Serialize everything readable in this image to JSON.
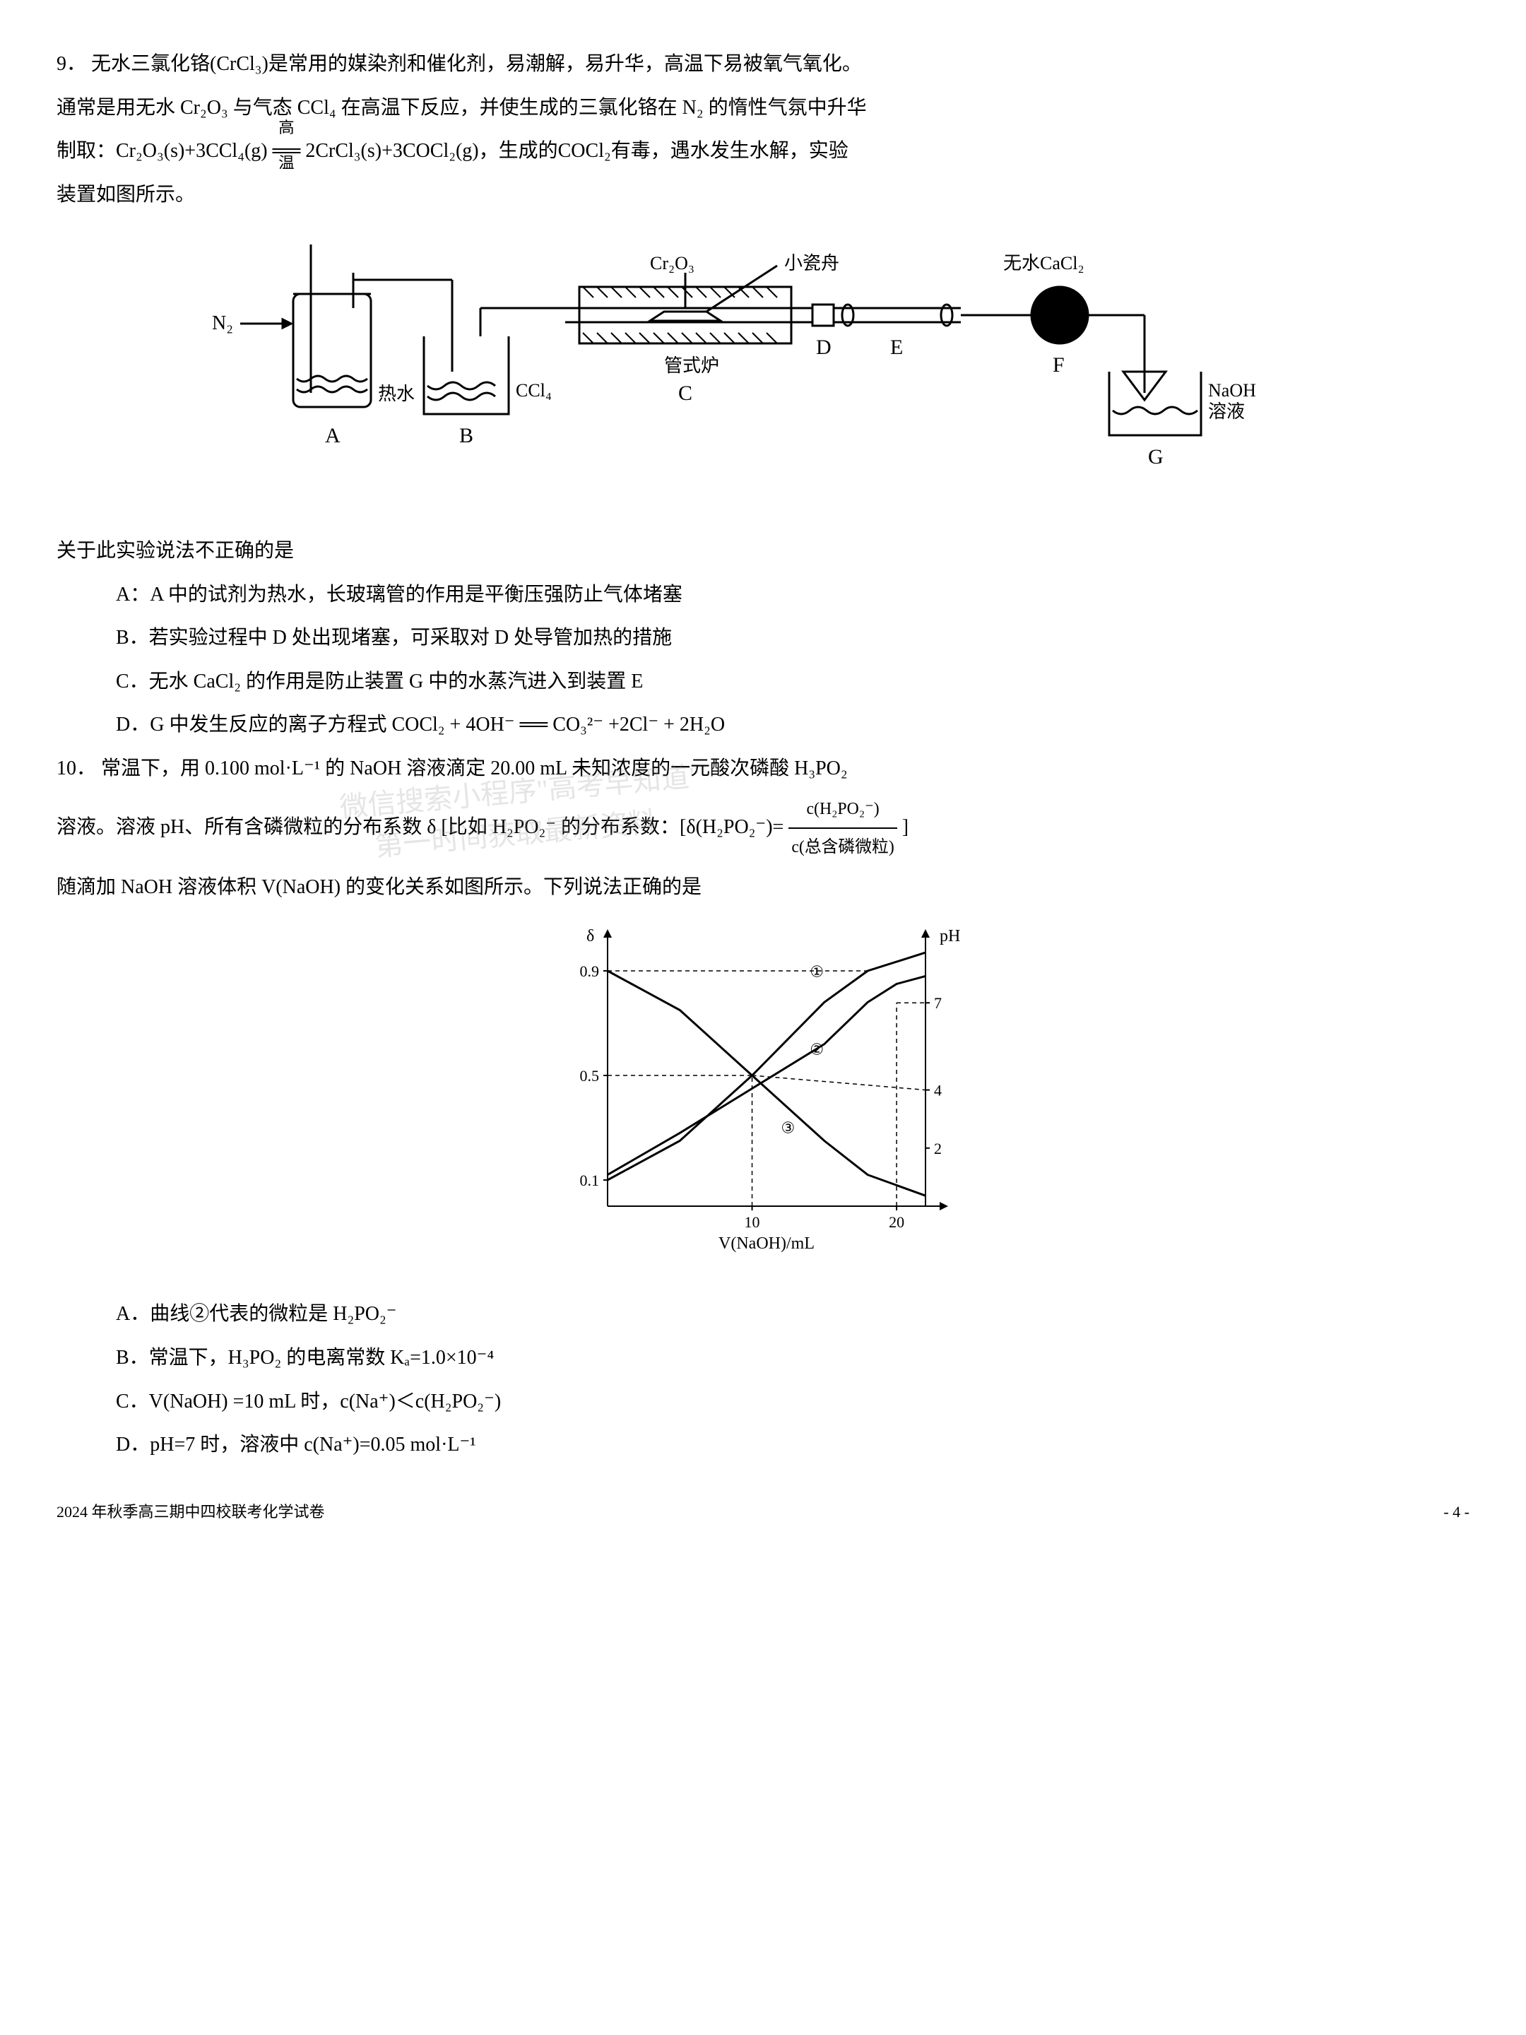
{
  "q9": {
    "number": "9．",
    "text1": "无水三氯化铬(CrCl₃)是常用的媒染剂和催化剂，易潮解，易升华，高温下易被氧气氧化。",
    "text2": "通常是用无水 Cr₂O₃ 与气态 CCl₄ 在高温下反应，并使生成的三氯化铬在 N₂ 的惰性气氛中升华",
    "text3_prefix": "制取：Cr₂O₃(s)+3CCl₄(g)",
    "text3_over": "高温",
    "text3_suffix": " 2CrCl₃(s)+3COCl₂(g)，生成的COCl₂有毒，遇水发生水解，实验",
    "text4": "装置如图所示。",
    "stem": "关于此实验说法不正确的是",
    "options": {
      "A": "A：A 中的试剂为热水，长玻璃管的作用是平衡压强防止气体堵塞",
      "B": "B．若实验过程中 D 处出现堵塞，可采取对 D 处导管加热的措施",
      "C": "C．无水 CaCl₂ 的作用是防止装置 G 中的水蒸汽进入到装置 E",
      "D": "D．G 中发生反应的离子方程式 COCl₂ + 4OH⁻ ══ CO₃²⁻ +2Cl⁻ + 2H₂O"
    },
    "diagram": {
      "labels": {
        "N2": "N₂",
        "hotwater": "热水",
        "CCl4": "CCl₄",
        "Cr2O3": "Cr₂O₃",
        "boat": "小瓷舟",
        "furnace": "管式炉",
        "CaCl2": "无水CaCl₂",
        "NaOH": "NaOH",
        "solution": "溶液",
        "A": "A",
        "B": "B",
        "C": "C",
        "D": "D",
        "E": "E",
        "F": "F",
        "G": "G"
      },
      "colors": {
        "stroke": "#000000",
        "hatch": "#000000",
        "fill_white": "#ffffff"
      }
    }
  },
  "q10": {
    "number": "10．",
    "text1": "常温下，用 0.100 mol·L⁻¹ 的 NaOH 溶液滴定 20.00 mL 未知浓度的一元酸次磷酸 H₃PO₂",
    "text2_prefix": "溶液。溶液 pH、所有含磷微粒的分布系数 δ [比如 H₂PO₂⁻ 的分布系数：[δ(H₂PO₂⁻)=",
    "frac_num": "c(H₂PO₂⁻)",
    "frac_den": "c(总含磷微粒)",
    "text2_suffix": "]",
    "text3": "随滴加 NaOH 溶液体积 V(NaOH) 的变化关系如图所示。下列说法正确的是",
    "options": {
      "A": "A．曲线②代表的微粒是 H₂PO₂⁻",
      "B": "B．常温下，H₃PO₂ 的电离常数 Kₐ=1.0×10⁻⁴",
      "C": "C．V(NaOH) =10 mL 时，c(Na⁺)＜c(H₂PO₂⁻)",
      "D": "D．pH=7 时，溶液中 c(Na⁺)=0.05 mol·L⁻¹"
    },
    "chart": {
      "type": "line",
      "xlabel": "V(NaOH)/mL",
      "ylabel_left": "δ",
      "ylabel_right": "pH",
      "xlim": [
        0,
        22
      ],
      "ylim_left": [
        0,
        1.0
      ],
      "ylim_right": [
        0,
        9
      ],
      "xticks": [
        10,
        20
      ],
      "yticks_left": [
        0.1,
        0.5,
        0.9
      ],
      "yticks_right": [
        2,
        4,
        7
      ],
      "curve_labels": [
        "①",
        "②",
        "③"
      ],
      "curve1_points": [
        [
          0,
          0.1
        ],
        [
          5,
          0.25
        ],
        [
          10,
          0.5
        ],
        [
          15,
          0.78
        ],
        [
          18,
          0.9
        ],
        [
          22,
          0.97
        ]
      ],
      "curve2_points": [
        [
          0,
          0.12
        ],
        [
          5,
          0.28
        ],
        [
          10,
          0.45
        ],
        [
          15,
          0.62
        ],
        [
          18,
          0.78
        ],
        [
          20,
          0.85
        ],
        [
          22,
          0.88
        ]
      ],
      "curve3_points": [
        [
          0,
          0.9
        ],
        [
          5,
          0.75
        ],
        [
          10,
          0.5
        ],
        [
          15,
          0.25
        ],
        [
          18,
          0.12
        ],
        [
          22,
          0.04
        ]
      ],
      "ph_map_points": [
        [
          10,
          4
        ],
        [
          20,
          7
        ]
      ],
      "stroke_color": "#000000",
      "background": "#ffffff",
      "grid_color": "#000000",
      "line_width": 2,
      "font_size": 22
    }
  },
  "watermark": {
    "line1": "微信搜索小程序\"高考早知道\"",
    "line2": "第一时间获取最新资料"
  },
  "footer": {
    "left": "2024 年秋季高三期中四校联考化学试卷",
    "right": "- 4 -"
  }
}
